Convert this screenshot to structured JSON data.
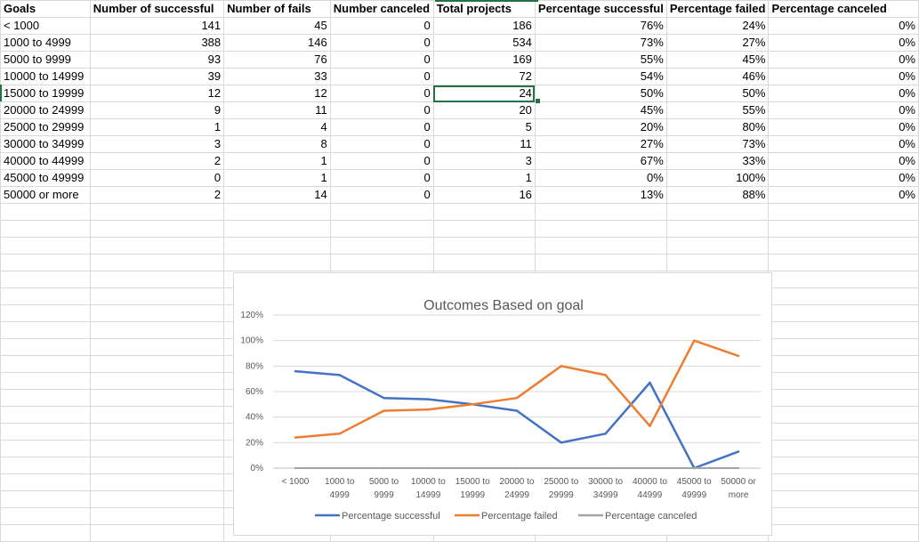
{
  "table": {
    "headers": [
      "Goals",
      "Number of successful",
      "Number of fails",
      "Number canceled",
      "Total projects",
      "Percentage successful",
      "Percentage failed",
      "Percentage canceled"
    ],
    "rows": [
      [
        "< 1000",
        "141",
        "45",
        "0",
        "186",
        "76%",
        "24%",
        "0%"
      ],
      [
        "1000 to 4999",
        "388",
        "146",
        "0",
        "534",
        "73%",
        "27%",
        "0%"
      ],
      [
        "5000 to 9999",
        "93",
        "76",
        "0",
        "169",
        "55%",
        "45%",
        "0%"
      ],
      [
        "10000 to 14999",
        "39",
        "33",
        "0",
        "72",
        "54%",
        "46%",
        "0%"
      ],
      [
        "15000 to 19999",
        "12",
        "12",
        "0",
        "24",
        "50%",
        "50%",
        "0%"
      ],
      [
        "20000 to 24999",
        "9",
        "11",
        "0",
        "20",
        "45%",
        "55%",
        "0%"
      ],
      [
        "25000 to 29999",
        "1",
        "4",
        "0",
        "5",
        "20%",
        "80%",
        "0%"
      ],
      [
        "30000 to 34999",
        "3",
        "8",
        "0",
        "11",
        "27%",
        "73%",
        "0%"
      ],
      [
        "40000 to 44999",
        "2",
        "1",
        "0",
        "3",
        "67%",
        "33%",
        "0%"
      ],
      [
        "45000 to 49999",
        "0",
        "1",
        "0",
        "1",
        "0%",
        "100%",
        "0%"
      ],
      [
        "50000 or more",
        "2",
        "14",
        "0",
        "16",
        "13%",
        "88%",
        "0%"
      ]
    ],
    "selected_cell": {
      "row": 4,
      "col": 4
    }
  },
  "chart_data": {
    "type": "line",
    "title": "Outcomes Based on goal",
    "categories": [
      [
        "< 1000"
      ],
      [
        "1000 to",
        "4999"
      ],
      [
        "5000 to",
        "9999"
      ],
      [
        "10000 to",
        "14999"
      ],
      [
        "15000 to",
        "19999"
      ],
      [
        "20000 to",
        "24999"
      ],
      [
        "25000 to",
        "29999"
      ],
      [
        "30000 to",
        "34999"
      ],
      [
        "40000 to",
        "44999"
      ],
      [
        "45000 to",
        "49999"
      ],
      [
        "50000 or",
        "more"
      ]
    ],
    "y_ticks": [
      "0%",
      "20%",
      "40%",
      "60%",
      "80%",
      "100%",
      "120%"
    ],
    "ylim": [
      0,
      1.2
    ],
    "y_step": 0.2,
    "grid": true,
    "legend_position": "bottom",
    "series": [
      {
        "name": "Percentage successful",
        "color": "#4472c4",
        "values": [
          0.76,
          0.73,
          0.55,
          0.54,
          0.5,
          0.45,
          0.2,
          0.27,
          0.67,
          0.0,
          0.13
        ]
      },
      {
        "name": "Percentage failed",
        "color": "#ed7d31",
        "values": [
          0.24,
          0.27,
          0.45,
          0.46,
          0.5,
          0.55,
          0.8,
          0.73,
          0.33,
          1.0,
          0.88
        ]
      },
      {
        "name": "Percentage canceled",
        "color": "#a5a5a5",
        "values": [
          0,
          0,
          0,
          0,
          0,
          0,
          0,
          0,
          0,
          0,
          0
        ]
      }
    ]
  }
}
